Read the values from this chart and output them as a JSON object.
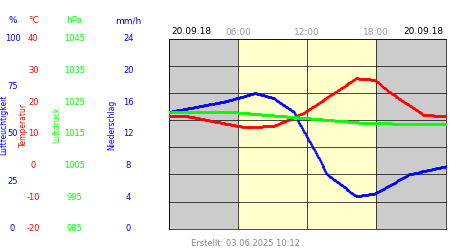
{
  "title_left": "20.09.18",
  "title_right": "20.09.18",
  "xlabel_times": [
    "06:00",
    "12:00",
    "18:00"
  ],
  "created": "Erstellt: 03.06.2025 10:12",
  "yellow_bg": "#ffffcc",
  "axis_bg": "#cccccc",
  "white_bg": "#e8e8e8",
  "left_ticks_blue": [
    100,
    75,
    50,
    25,
    0
  ],
  "left_ticks_red": [
    40,
    30,
    20,
    10,
    0,
    -10,
    -20
  ],
  "left_ticks_green": [
    1045,
    1035,
    1025,
    1015,
    1005,
    995,
    985
  ],
  "left_ticks_navy": [
    24,
    20,
    16,
    12,
    8,
    4,
    0
  ],
  "ylim": [
    0,
    7
  ],
  "xlim": [
    0,
    288
  ],
  "yellow_xstart": 72,
  "yellow_xend": 216,
  "grid_x": [
    0,
    72,
    144,
    216,
    288
  ],
  "grid_y": [
    0,
    1,
    2,
    3,
    4,
    5,
    6,
    7
  ]
}
